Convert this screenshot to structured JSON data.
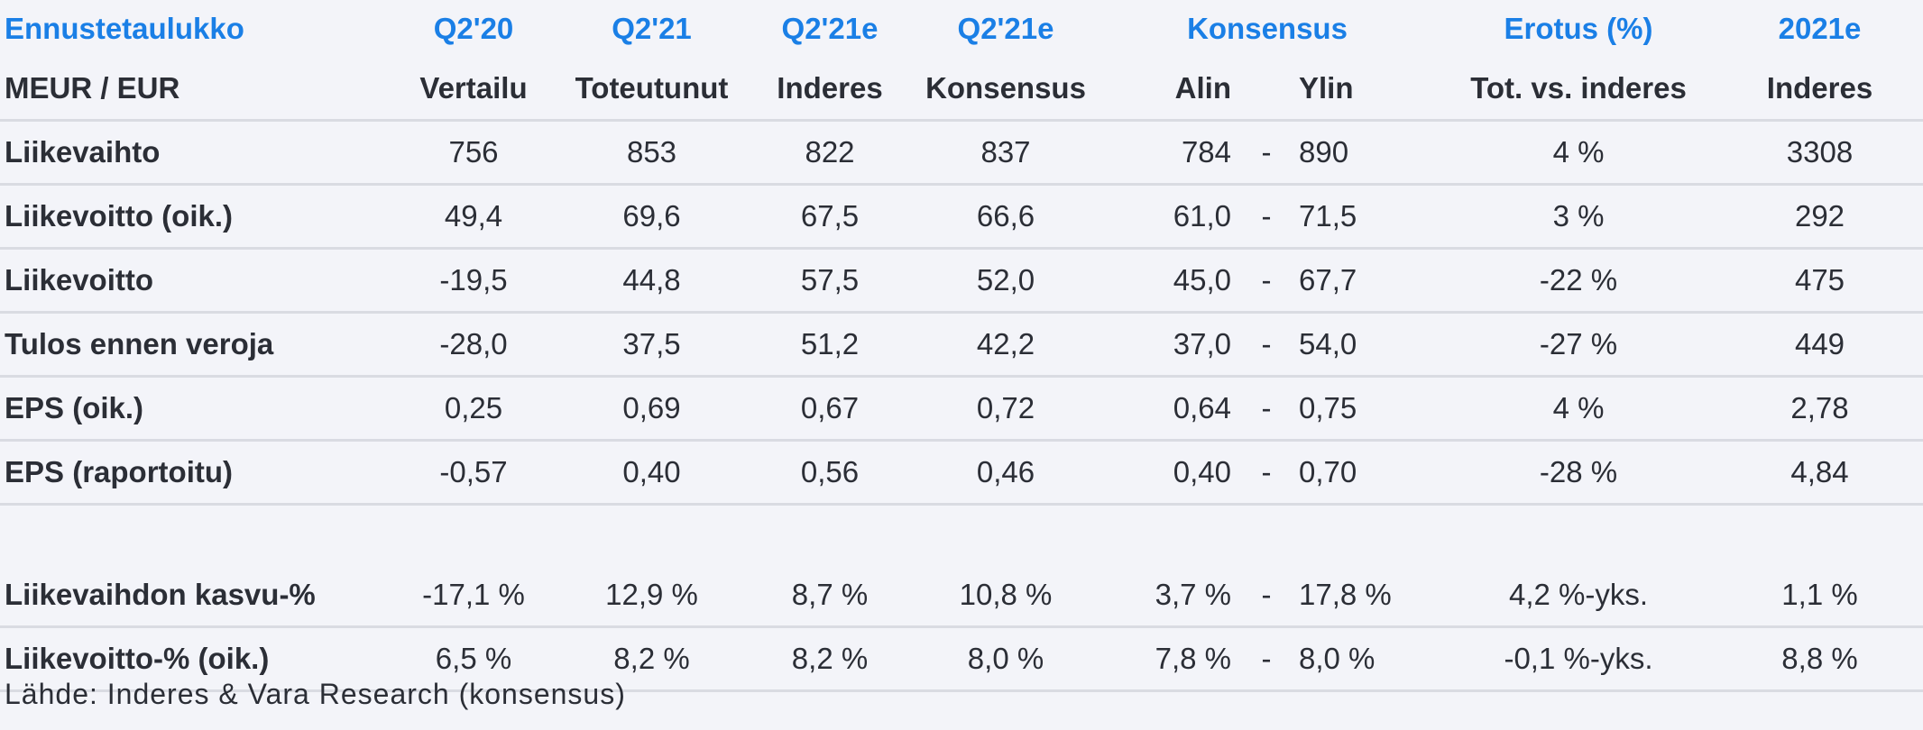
{
  "header": {
    "title": "Ennustetaulukko",
    "cols": [
      "Q2'20",
      "Q2'21",
      "Q2'21e",
      "Q2'21e",
      "Konsensus",
      "Erotus (%)",
      "2021e"
    ]
  },
  "subheader": {
    "unit": "MEUR / EUR",
    "cols": [
      "Vertailu",
      "Toteutunut",
      "Inderes",
      "Konsensus",
      "Alin",
      "Ylin",
      "Tot. vs. inderes",
      "Inderes"
    ]
  },
  "rows": [
    {
      "label": "Liikevaihto",
      "q220": "756",
      "q221": "853",
      "ind": "822",
      "kons": "837",
      "alin": "784",
      "dash": "-",
      "ylin": "890",
      "erotus": "4 %",
      "y2021": "3308"
    },
    {
      "label": "Liikevoitto (oik.)",
      "q220": "49,4",
      "q221": "69,6",
      "ind": "67,5",
      "kons": "66,6",
      "alin": "61,0",
      "dash": "-",
      "ylin": "71,5",
      "erotus": "3 %",
      "y2021": "292"
    },
    {
      "label": "Liikevoitto",
      "q220": "-19,5",
      "q221": "44,8",
      "ind": "57,5",
      "kons": "52,0",
      "alin": "45,0",
      "dash": "-",
      "ylin": "67,7",
      "erotus": "-22 %",
      "y2021": "475"
    },
    {
      "label": "Tulos ennen veroja",
      "q220": "-28,0",
      "q221": "37,5",
      "ind": "51,2",
      "kons": "42,2",
      "alin": "37,0",
      "dash": "-",
      "ylin": "54,0",
      "erotus": "-27 %",
      "y2021": "449"
    },
    {
      "label": "EPS (oik.)",
      "q220": "0,25",
      "q221": "0,69",
      "ind": "0,67",
      "kons": "0,72",
      "alin": "0,64",
      "dash": "-",
      "ylin": "0,75",
      "erotus": "4 %",
      "y2021": "2,78"
    },
    {
      "label": "EPS (raportoitu)",
      "q220": "-0,57",
      "q221": "0,40",
      "ind": "0,56",
      "kons": "0,46",
      "alin": "0,40",
      "dash": "-",
      "ylin": "0,70",
      "erotus": "-28 %",
      "y2021": "4,84"
    }
  ],
  "rows2": [
    {
      "label": "Liikevaihdon kasvu-%",
      "q220": "-17,1 %",
      "q221": "12,9 %",
      "ind": "8,7 %",
      "kons": "10,8 %",
      "alin": "3,7 %",
      "dash": "-",
      "ylin": "17,8 %",
      "erotus": "4,2 %-yks.",
      "y2021": "1,1 %"
    },
    {
      "label": "Liikevoitto-% (oik.)",
      "q220": "6,5 %",
      "q221": "8,2 %",
      "ind": "8,2 %",
      "kons": "8,0 %",
      "alin": "7,8 %",
      "dash": "-",
      "ylin": "8,0 %",
      "erotus": "-0,1 %-yks.",
      "y2021": "8,8 %"
    }
  ],
  "footer": {
    "source": "Lähde: Inderes & Vara Research  (konsensus)"
  },
  "colors": {
    "header_blue": "#1a7fe6",
    "text": "#2b2e36",
    "background": "#f3f4f9",
    "divider": "#d9dbe2"
  }
}
